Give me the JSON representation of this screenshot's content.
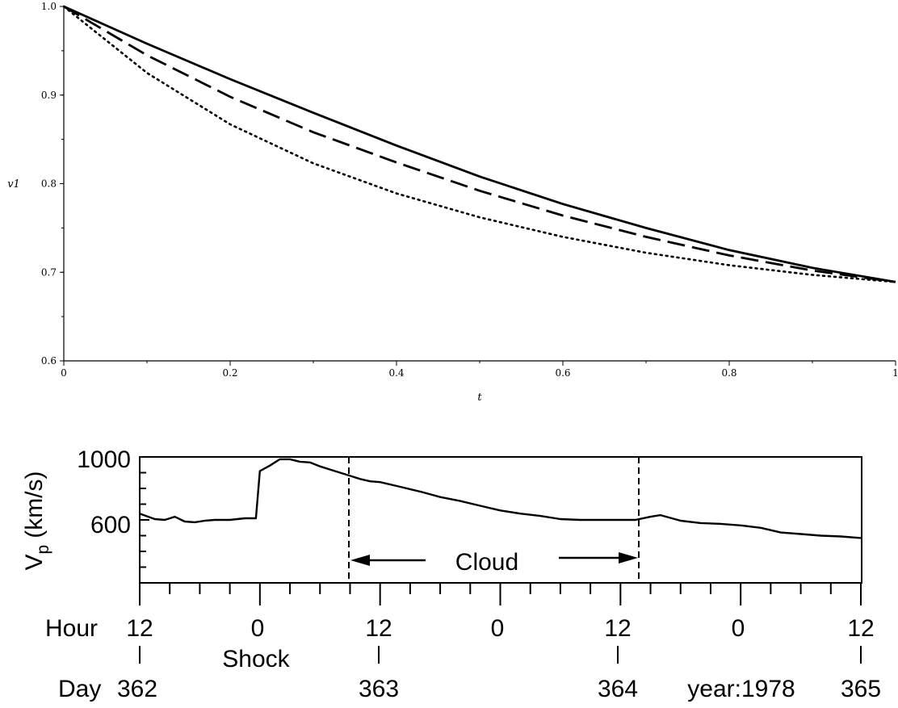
{
  "chart_data": [
    {
      "type": "line",
      "xlabel": "t",
      "ylabel": "v1",
      "xlim": [
        0,
        1
      ],
      "ylim": [
        0.6,
        1.0
      ],
      "x_ticks": [
        0,
        0.2,
        0.4,
        0.6,
        0.8,
        1
      ],
      "x_tick_labels": [
        "0",
        "0.2",
        "0.4",
        "0.6",
        "0.8",
        "1"
      ],
      "y_ticks": [
        0.6,
        0.7,
        0.8,
        0.9,
        1.0
      ],
      "y_tick_labels": [
        "0.6",
        "0.7",
        "0.8",
        "0.9",
        "1.0"
      ],
      "grid": false,
      "series": [
        {
          "style": "solid",
          "x": [
            0,
            0.1,
            0.2,
            0.3,
            0.4,
            0.5,
            0.6,
            0.7,
            0.8,
            0.9,
            1.0
          ],
          "y": [
            1.0,
            0.958,
            0.918,
            0.88,
            0.843,
            0.808,
            0.777,
            0.75,
            0.725,
            0.705,
            0.689
          ]
        },
        {
          "style": "dashed",
          "x": [
            0,
            0.1,
            0.2,
            0.3,
            0.4,
            0.5,
            0.6,
            0.7,
            0.8,
            0.9,
            1.0
          ],
          "y": [
            1.0,
            0.945,
            0.898,
            0.858,
            0.824,
            0.792,
            0.764,
            0.74,
            0.719,
            0.702,
            0.689
          ]
        },
        {
          "style": "dotted",
          "x": [
            0,
            0.1,
            0.2,
            0.3,
            0.4,
            0.5,
            0.6,
            0.7,
            0.8,
            0.9,
            1.0
          ],
          "y": [
            1.0,
            0.925,
            0.867,
            0.823,
            0.789,
            0.762,
            0.74,
            0.722,
            0.708,
            0.697,
            0.689
          ]
        }
      ]
    },
    {
      "type": "line",
      "ylabel_main": "V",
      "ylabel_sub": "p",
      "ylabel_unit": "(km/s)",
      "y_ticks": [
        600,
        1000
      ],
      "y_tick_labels": [
        "600",
        "1000"
      ],
      "grid": false,
      "x_unit": "hours since Day 362 12:00",
      "xlim": [
        0,
        72
      ],
      "ylim": [
        200,
        1000
      ],
      "series": [
        {
          "style": "solid",
          "x": [
            0,
            1.5,
            2.5,
            3.5,
            4.5,
            5.5,
            6.5,
            7.5,
            9.0,
            10.5,
            11.6,
            12.0,
            13.0,
            14.0,
            15.0,
            16.0,
            17.0,
            18.0,
            19.0,
            20.0,
            21.0,
            22.0,
            23.0,
            24.0,
            26.0,
            28.0,
            30.0,
            32.0,
            34.0,
            36.0,
            38.0,
            40.0,
            42.0,
            44.0,
            46.0,
            48.0,
            49.5,
            51.0,
            52.0,
            54.0,
            56.0,
            58.0,
            60.0,
            62.0,
            64.0,
            66.0,
            68.0,
            70.0,
            72.0
          ],
          "y": [
            640,
            605,
            600,
            620,
            590,
            585,
            595,
            600,
            600,
            610,
            610,
            910,
            945,
            985,
            985,
            970,
            965,
            940,
            920,
            900,
            880,
            860,
            845,
            840,
            810,
            780,
            745,
            720,
            690,
            660,
            640,
            625,
            605,
            600,
            600,
            600,
            600,
            620,
            630,
            595,
            580,
            575,
            565,
            550,
            520,
            510,
            500,
            495,
            485
          ]
        }
      ],
      "annotation": "Cloud",
      "hour_row_label": "Hour",
      "hour_labels": [
        "12",
        "0",
        "12",
        "0",
        "12",
        "0",
        "12"
      ],
      "shock_label": "Shock",
      "day_row_label": "Day",
      "day_labels": [
        "362",
        "363",
        "364",
        "365"
      ],
      "year_label": "year:1978"
    }
  ]
}
